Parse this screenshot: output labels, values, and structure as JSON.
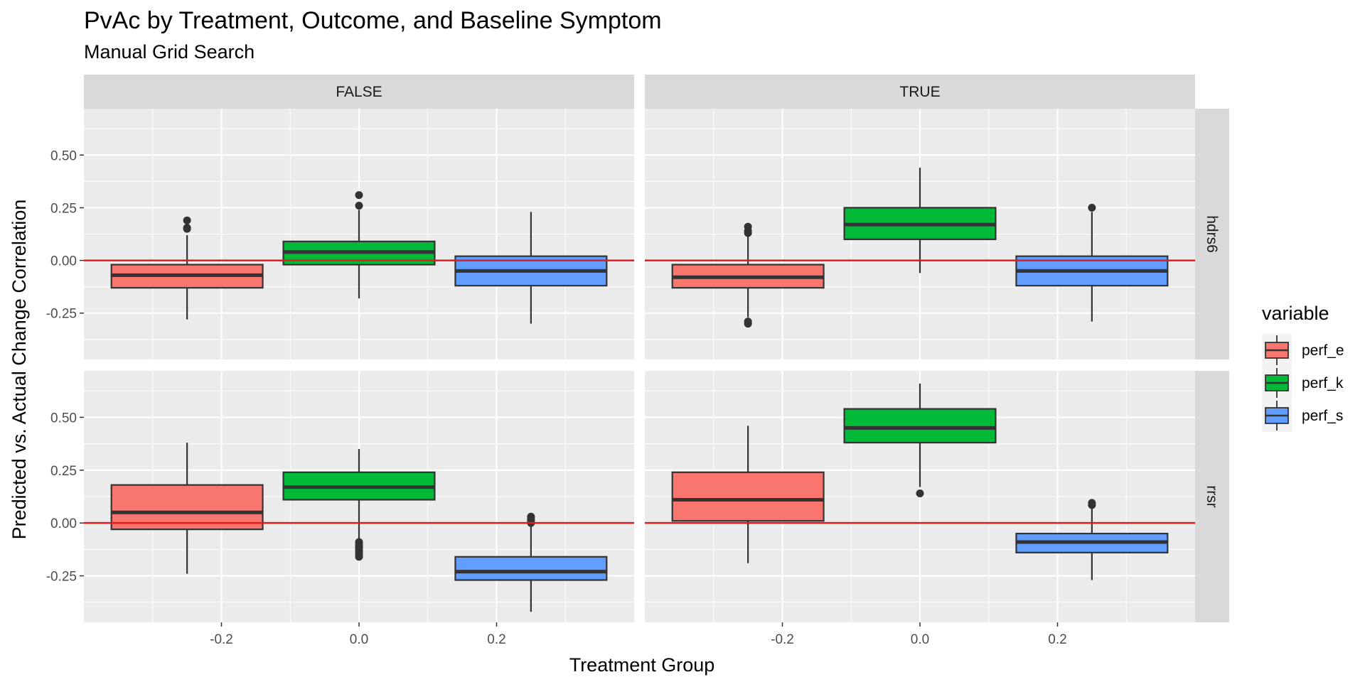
{
  "chart_data": {
    "type": "boxplot",
    "title": "PvAc by Treatment, Outcome, and Baseline Symptom",
    "subtitle": "Manual Grid Search",
    "xlabel": "Treatment Group",
    "ylabel": "Predicted vs. Actual Change Correlation",
    "x_ticks": [
      -0.2,
      0.0,
      0.2
    ],
    "x_tick_labels": [
      "-0.2",
      "0.0",
      "0.2"
    ],
    "xlim": [
      -0.4,
      0.4
    ],
    "y_ticks": [
      -0.25,
      0.0,
      0.25,
      0.5
    ],
    "y_tick_labels": [
      "-0.25",
      "0.00",
      "0.25",
      "0.50"
    ],
    "ylim_top_row": [
      -0.47,
      0.72
    ],
    "ylim_bottom_row": [
      -0.47,
      0.72
    ],
    "reference_line_y": 0,
    "reference_line_color": "#e31a1c",
    "grid": true,
    "legend_position": "right",
    "legend_title": "variable",
    "columns": [
      "FALSE",
      "TRUE"
    ],
    "rows": [
      "hdrs6",
      "rrsr"
    ],
    "series": [
      {
        "name": "perf_e",
        "color": "#F8766D",
        "x": -0.25
      },
      {
        "name": "perf_k",
        "color": "#00BA38",
        "x": 0.0
      },
      {
        "name": "perf_s",
        "color": "#619CFF",
        "x": 0.25
      }
    ],
    "panels": [
      {
        "column": "FALSE",
        "row": "hdrs6",
        "boxes": [
          {
            "series": "perf_e",
            "lower_whisker": -0.28,
            "q1": -0.13,
            "median": -0.07,
            "q3": -0.02,
            "upper_whisker": 0.12,
            "outliers": [
              0.15,
              0.155,
              0.19
            ]
          },
          {
            "series": "perf_k",
            "lower_whisker": -0.18,
            "q1": -0.02,
            "median": 0.04,
            "q3": 0.09,
            "upper_whisker": 0.24,
            "outliers": [
              0.26,
              0.31
            ]
          },
          {
            "series": "perf_s",
            "lower_whisker": -0.3,
            "q1": -0.12,
            "median": -0.05,
            "q3": 0.02,
            "upper_whisker": 0.23,
            "outliers": []
          }
        ]
      },
      {
        "column": "TRUE",
        "row": "hdrs6",
        "boxes": [
          {
            "series": "perf_e",
            "lower_whisker": -0.27,
            "q1": -0.13,
            "median": -0.08,
            "q3": -0.02,
            "upper_whisker": 0.12,
            "outliers": [
              0.13,
              0.14,
              0.16,
              -0.29,
              -0.3
            ]
          },
          {
            "series": "perf_k",
            "lower_whisker": -0.06,
            "q1": 0.1,
            "median": 0.17,
            "q3": 0.25,
            "upper_whisker": 0.44,
            "outliers": []
          },
          {
            "series": "perf_s",
            "lower_whisker": -0.29,
            "q1": -0.12,
            "median": -0.05,
            "q3": 0.02,
            "upper_whisker": 0.23,
            "outliers": [
              0.25
            ]
          }
        ]
      },
      {
        "column": "FALSE",
        "row": "rrsr",
        "boxes": [
          {
            "series": "perf_e",
            "lower_whisker": -0.24,
            "q1": -0.03,
            "median": 0.05,
            "q3": 0.18,
            "upper_whisker": 0.38,
            "outliers": []
          },
          {
            "series": "perf_k",
            "lower_whisker": -0.08,
            "q1": 0.11,
            "median": 0.17,
            "q3": 0.24,
            "upper_whisker": 0.35,
            "outliers": [
              -0.09,
              -0.1,
              -0.11,
              -0.12,
              -0.13,
              -0.14,
              -0.15,
              -0.16
            ]
          },
          {
            "series": "perf_s",
            "lower_whisker": -0.42,
            "q1": -0.27,
            "median": -0.23,
            "q3": -0.16,
            "upper_whisker": -0.01,
            "outliers": [
              0.0,
              0.01,
              0.02,
              0.03
            ]
          }
        ]
      },
      {
        "column": "TRUE",
        "row": "rrsr",
        "boxes": [
          {
            "series": "perf_e",
            "lower_whisker": -0.19,
            "q1": 0.01,
            "median": 0.11,
            "q3": 0.24,
            "upper_whisker": 0.46,
            "outliers": []
          },
          {
            "series": "perf_k",
            "lower_whisker": 0.17,
            "q1": 0.38,
            "median": 0.45,
            "q3": 0.54,
            "upper_whisker": 0.66,
            "outliers": [
              0.14
            ]
          },
          {
            "series": "perf_s",
            "lower_whisker": -0.27,
            "q1": -0.14,
            "median": -0.09,
            "q3": -0.05,
            "upper_whisker": 0.08,
            "outliers": [
              0.085,
              0.095
            ]
          }
        ]
      }
    ]
  }
}
